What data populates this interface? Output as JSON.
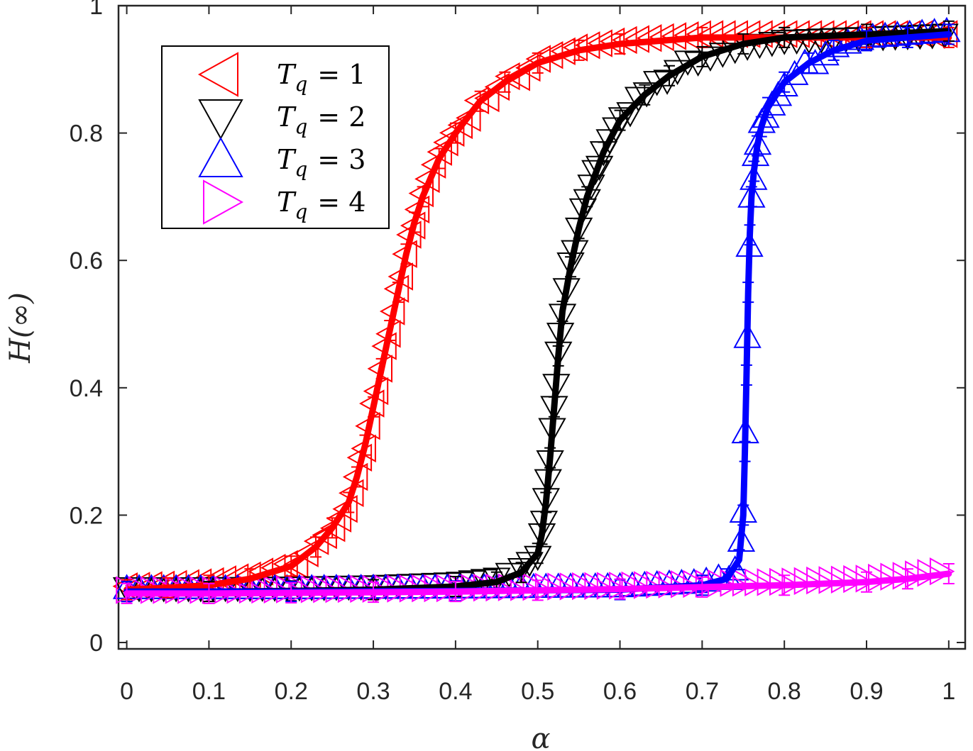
{
  "chart_data": {
    "type": "line",
    "xlabel": "α",
    "ylabel": "H(∞)",
    "xlim": [
      -0.01,
      1.02
    ],
    "ylim": [
      -0.01,
      1.0
    ],
    "xticks": [
      "0",
      "0.1",
      "0.2",
      "0.3",
      "0.4",
      "0.5",
      "0.6",
      "0.7",
      "0.8",
      "0.9",
      "1"
    ],
    "yticks": [
      "0",
      "0.2",
      "0.4",
      "0.6",
      "0.8",
      "1"
    ],
    "grid": false,
    "legend_position": "top-left",
    "series": [
      {
        "name": "T_q = 1",
        "legend_label": "T",
        "legend_sub": "q",
        "legend_value": "= 1",
        "color": "#ff0000",
        "marker": "triangle-left",
        "x": [
          0.0,
          0.05,
          0.1,
          0.15,
          0.2,
          0.23,
          0.25,
          0.27,
          0.28,
          0.29,
          0.3,
          0.31,
          0.32,
          0.33,
          0.34,
          0.35,
          0.36,
          0.38,
          0.4,
          0.43,
          0.46,
          0.5,
          0.55,
          0.6,
          0.7,
          0.8,
          0.9,
          1.0
        ],
        "y": [
          0.083,
          0.086,
          0.09,
          0.1,
          0.12,
          0.15,
          0.18,
          0.22,
          0.26,
          0.31,
          0.37,
          0.43,
          0.49,
          0.55,
          0.61,
          0.66,
          0.7,
          0.76,
          0.8,
          0.85,
          0.88,
          0.91,
          0.93,
          0.94,
          0.95,
          0.95,
          0.95,
          0.95
        ]
      },
      {
        "name": "T_q = 2",
        "legend_label": "T",
        "legend_sub": "q",
        "legend_value": "= 2",
        "color": "#000000",
        "marker": "triangle-down",
        "x": [
          0.0,
          0.1,
          0.2,
          0.3,
          0.4,
          0.45,
          0.48,
          0.5,
          0.505,
          0.51,
          0.515,
          0.52,
          0.525,
          0.53,
          0.54,
          0.55,
          0.56,
          0.58,
          0.6,
          0.63,
          0.66,
          0.7,
          0.75,
          0.8,
          0.9,
          1.0
        ],
        "y": [
          0.08,
          0.08,
          0.081,
          0.083,
          0.088,
          0.095,
          0.11,
          0.14,
          0.17,
          0.22,
          0.29,
          0.37,
          0.45,
          0.52,
          0.59,
          0.65,
          0.7,
          0.77,
          0.82,
          0.86,
          0.89,
          0.92,
          0.94,
          0.95,
          0.955,
          0.96
        ]
      },
      {
        "name": "T_q = 3",
        "legend_label": "T",
        "legend_sub": "q",
        "legend_value": "= 3",
        "color": "#0000ff",
        "marker": "triangle-up",
        "x": [
          0.0,
          0.2,
          0.4,
          0.6,
          0.7,
          0.73,
          0.745,
          0.75,
          0.752,
          0.754,
          0.756,
          0.758,
          0.76,
          0.763,
          0.767,
          0.772,
          0.78,
          0.8,
          0.83,
          0.86,
          0.9,
          0.95,
          1.0
        ],
        "y": [
          0.08,
          0.08,
          0.081,
          0.083,
          0.09,
          0.1,
          0.13,
          0.2,
          0.3,
          0.42,
          0.55,
          0.64,
          0.7,
          0.74,
          0.78,
          0.81,
          0.84,
          0.88,
          0.91,
          0.93,
          0.945,
          0.95,
          0.955
        ]
      },
      {
        "name": "T_q = 4",
        "legend_label": "T",
        "legend_sub": "q",
        "legend_value": "= 4",
        "color": "#ff00ff",
        "marker": "triangle-right",
        "x": [
          0.0,
          0.1,
          0.2,
          0.3,
          0.4,
          0.5,
          0.6,
          0.7,
          0.8,
          0.9,
          0.95,
          1.0
        ],
        "y": [
          0.077,
          0.077,
          0.078,
          0.079,
          0.08,
          0.082,
          0.084,
          0.087,
          0.09,
          0.095,
          0.1,
          0.108
        ]
      }
    ]
  }
}
